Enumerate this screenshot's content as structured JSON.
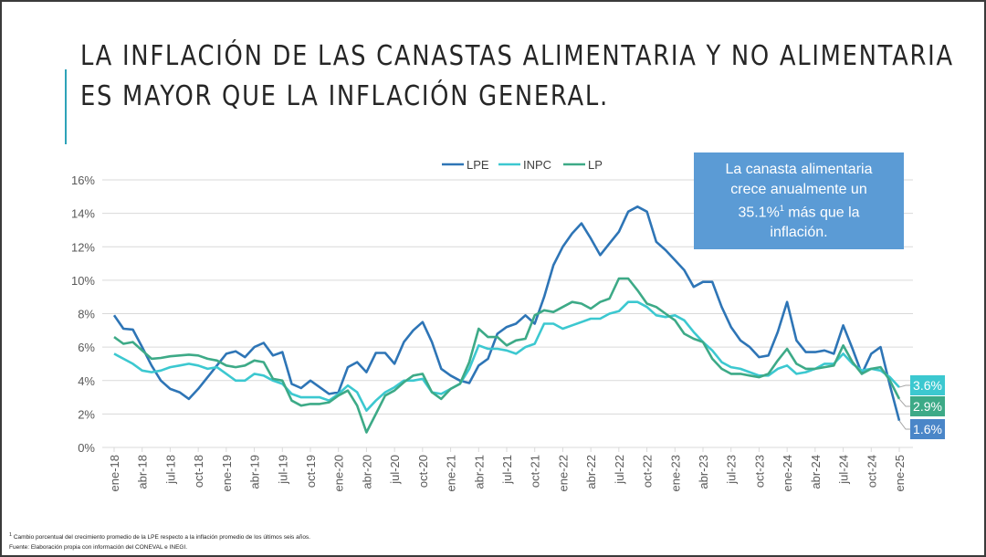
{
  "title_lines": [
    "LA INFLACIÓN DE LAS CANASTAS ALIMENTARIA Y NO ALIMENTARIA",
    "ES MAYOR QUE LA INFLACIÓN GENERAL."
  ],
  "callout": {
    "line1": "La canasta alimentaria",
    "line2": "crece anualmente un",
    "line3_value": "35.1%",
    "line3_sup": "1",
    "line3_rest": " más que la",
    "line4": "inflación."
  },
  "footnotes": {
    "note1_sup": "1",
    "note1": " Cambio porcentual del crecimiento promedio de la LPE respecto a la inflación promedio de los últimos seis años.",
    "source": "Fuente: Elaboración propia con información del CONEVAL e INEGI."
  },
  "chart_data": {
    "type": "line",
    "title": "",
    "xlabel": "",
    "ylabel": "",
    "ylim": [
      0,
      16
    ],
    "y_ticks": [
      "0%",
      "2%",
      "4%",
      "6%",
      "8%",
      "10%",
      "12%",
      "14%",
      "16%"
    ],
    "grid": true,
    "legend_position": "top",
    "x_tick_labels": [
      "ene-18",
      "abr-18",
      "jul-18",
      "oct-18",
      "ene-19",
      "abr-19",
      "jul-19",
      "oct-19",
      "ene-20",
      "abr-20",
      "jul-20",
      "oct-20",
      "ene-21",
      "abr-21",
      "jul-21",
      "oct-21",
      "ene-22",
      "abr-22",
      "jul-22",
      "oct-22",
      "ene-23",
      "abr-23",
      "jul-23",
      "oct-23",
      "ene-24",
      "abr-24",
      "jul-24",
      "oct-24",
      "ene-25"
    ],
    "x_frequency": "monthly, ene-18 to ene-25",
    "series": [
      {
        "name": "LPE",
        "color": "#2e75b6",
        "end_label": "1.6%",
        "values": [
          7.9,
          7.1,
          7.05,
          6.0,
          4.9,
          4.0,
          3.5,
          3.3,
          2.9,
          3.5,
          4.2,
          4.9,
          5.6,
          5.75,
          5.4,
          6.0,
          6.25,
          5.5,
          5.7,
          3.8,
          3.55,
          4.0,
          3.6,
          3.2,
          3.3,
          4.8,
          5.1,
          4.5,
          5.65,
          5.65,
          5.0,
          6.3,
          7.0,
          7.5,
          6.3,
          4.7,
          4.3,
          4.0,
          3.85,
          4.9,
          5.3,
          6.8,
          7.2,
          7.4,
          7.9,
          7.4,
          9.0,
          10.9,
          12.0,
          12.8,
          13.4,
          12.5,
          11.5,
          12.2,
          12.9,
          14.1,
          14.4,
          14.1,
          12.3,
          11.8,
          11.2,
          10.6,
          9.6,
          9.9,
          9.9,
          8.4,
          7.2,
          6.4,
          6.0,
          5.4,
          5.5,
          6.9,
          8.7,
          6.4,
          5.7,
          5.7,
          5.8,
          5.6,
          7.3,
          5.9,
          4.4,
          5.6,
          6.0,
          3.7,
          1.6
        ]
      },
      {
        "name": "INPC",
        "color": "#3cc8d0",
        "end_label": "3.6%",
        "values": [
          5.6,
          5.3,
          5.0,
          4.6,
          4.5,
          4.6,
          4.8,
          4.9,
          5.0,
          4.9,
          4.7,
          4.8,
          4.4,
          4.0,
          4.0,
          4.4,
          4.3,
          4.0,
          3.8,
          3.2,
          3.0,
          3.0,
          3.0,
          2.8,
          3.2,
          3.7,
          3.3,
          2.2,
          2.8,
          3.3,
          3.6,
          4.0,
          4.0,
          4.1,
          3.3,
          3.2,
          3.5,
          3.8,
          4.7,
          6.1,
          5.9,
          5.9,
          5.8,
          5.6,
          6.0,
          6.2,
          7.4,
          7.4,
          7.1,
          7.3,
          7.5,
          7.7,
          7.7,
          8.0,
          8.15,
          8.7,
          8.7,
          8.4,
          7.9,
          7.8,
          7.9,
          7.6,
          6.9,
          6.3,
          5.8,
          5.1,
          4.8,
          4.7,
          4.5,
          4.3,
          4.3,
          4.7,
          4.9,
          4.4,
          4.5,
          4.7,
          5.0,
          5.0,
          5.6,
          5.0,
          4.6,
          4.7,
          4.6,
          4.2,
          3.6
        ]
      },
      {
        "name": "LP",
        "color": "#3daa87",
        "end_label": "2.9%",
        "values": [
          6.6,
          6.2,
          6.3,
          5.8,
          5.3,
          5.35,
          5.45,
          5.5,
          5.55,
          5.5,
          5.3,
          5.2,
          4.9,
          4.8,
          4.9,
          5.2,
          5.1,
          4.1,
          4.0,
          2.8,
          2.5,
          2.6,
          2.6,
          2.7,
          3.1,
          3.4,
          2.5,
          0.9,
          2.0,
          3.1,
          3.4,
          3.9,
          4.3,
          4.4,
          3.3,
          2.9,
          3.5,
          3.8,
          5.1,
          7.1,
          6.6,
          6.6,
          6.1,
          6.4,
          6.5,
          7.9,
          8.2,
          8.1,
          8.4,
          8.7,
          8.6,
          8.3,
          8.7,
          8.9,
          10.1,
          10.1,
          9.4,
          8.6,
          8.4,
          8.0,
          7.6,
          6.8,
          6.5,
          6.3,
          5.3,
          4.7,
          4.4,
          4.4,
          4.3,
          4.2,
          4.4,
          5.2,
          5.9,
          5.0,
          4.7,
          4.7,
          4.8,
          4.9,
          6.1,
          5.1,
          4.4,
          4.7,
          4.8,
          4.0,
          2.9
        ]
      }
    ]
  }
}
